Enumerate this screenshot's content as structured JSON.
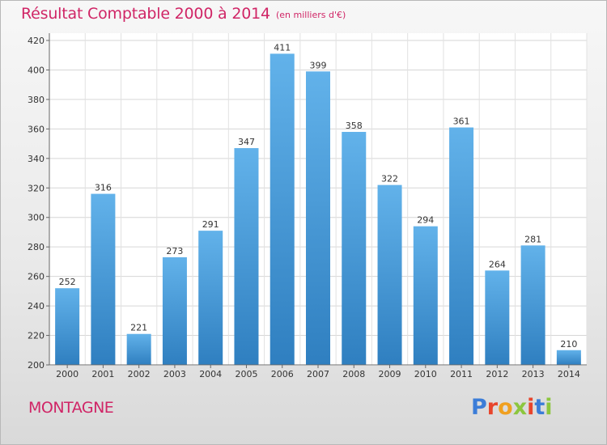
{
  "header": {
    "title": "Résultat Comptable 2000 à 2014",
    "subtitle": "(en milliers d'€)"
  },
  "footer": {
    "label": "MONTAGNE",
    "logo_letters": [
      "P",
      "r",
      "o",
      "x",
      "i",
      "t",
      "i"
    ],
    "logo_colors": [
      "#3b7dd8",
      "#e8452c",
      "#f0a020",
      "#8cc63e",
      "#e8452c",
      "#3b7dd8",
      "#8cc63e"
    ]
  },
  "colors": {
    "bar_top": "#62b2ea",
    "bar_bottom": "#2f7fc0",
    "accent": "#d02566"
  },
  "chart_data": {
    "type": "bar",
    "title": "Résultat Comptable 2000 à 2014",
    "subtitle": "(en milliers d'€)",
    "categories": [
      "2000",
      "2001",
      "2002",
      "2003",
      "2004",
      "2005",
      "2006",
      "2007",
      "2008",
      "2009",
      "2010",
      "2011",
      "2012",
      "2013",
      "2014"
    ],
    "values": [
      252,
      316,
      221,
      273,
      291,
      347,
      411,
      399,
      358,
      322,
      294,
      361,
      264,
      281,
      210
    ],
    "ylim": [
      200,
      420
    ],
    "yticks": [
      200,
      220,
      240,
      260,
      280,
      300,
      320,
      340,
      360,
      380,
      400,
      420
    ],
    "grid": true
  }
}
